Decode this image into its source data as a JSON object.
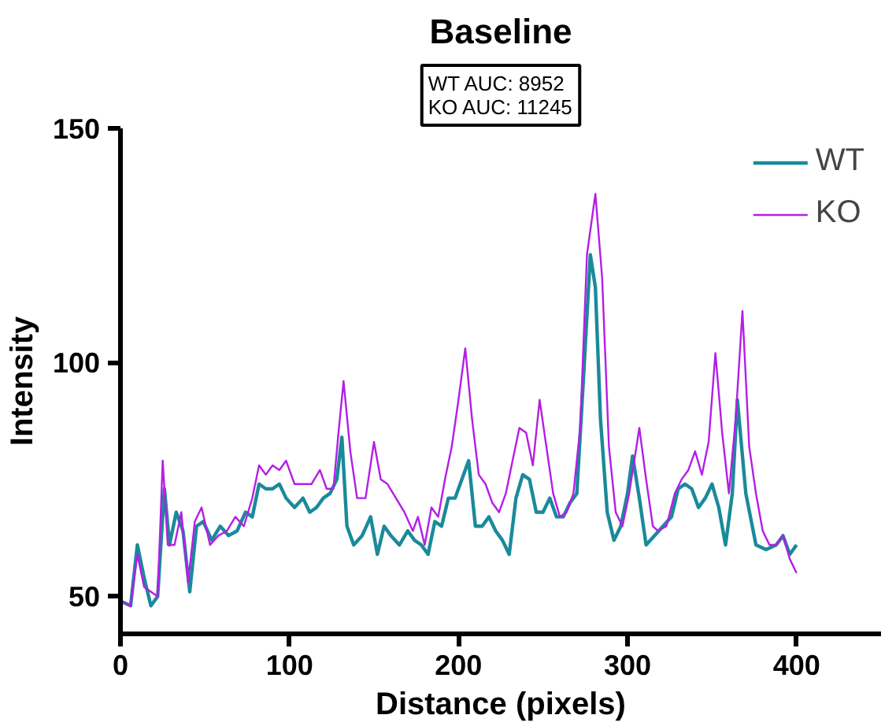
{
  "chart_data": {
    "type": "line",
    "title": "Baseline",
    "xlabel": "Distance (pixels)",
    "ylabel": "Intensity",
    "annotations": [
      "WT AUC: 8952",
      "KO AUC: 11245"
    ],
    "xlim": [
      0,
      450
    ],
    "ylim": [
      42,
      150
    ],
    "xticks": [
      0,
      100,
      200,
      300,
      400
    ],
    "yticks": [
      50,
      100,
      150
    ],
    "grid": false,
    "legend": "top right",
    "line_style": "solid",
    "marker": "none",
    "series": [
      {
        "name": "WT",
        "color": "#1a8a9a",
        "x": [
          0,
          6,
          10,
          14,
          18,
          22,
          26,
          29,
          33,
          37,
          41,
          45,
          49,
          54,
          59,
          64,
          69,
          74,
          78,
          82,
          86,
          90,
          94,
          98,
          103,
          108,
          112,
          116,
          120,
          124,
          128,
          131,
          134,
          138,
          143,
          148,
          152,
          156,
          160,
          165,
          170,
          174,
          178,
          182,
          186,
          190,
          194,
          198,
          202,
          206,
          210,
          214,
          218,
          222,
          226,
          230,
          234,
          238,
          242,
          246,
          250,
          254,
          258,
          262,
          266,
          270,
          274,
          278,
          281,
          284,
          288,
          292,
          296,
          300,
          303,
          307,
          311,
          316,
          321,
          326,
          330,
          334,
          338,
          342,
          346,
          350,
          354,
          358,
          362,
          365,
          370,
          376,
          382,
          388,
          392,
          396,
          400
        ],
        "values": [
          49,
          48,
          61,
          54,
          48,
          50,
          73,
          61,
          68,
          64,
          51,
          65,
          66,
          62,
          65,
          63,
          64,
          68,
          67,
          74,
          73,
          73,
          74,
          71,
          69,
          71,
          68,
          69,
          71,
          72,
          75,
          84,
          65,
          61,
          63,
          67,
          59,
          65,
          63,
          61,
          64,
          62,
          61,
          59,
          66,
          65,
          71,
          71,
          75,
          79,
          65,
          65,
          67,
          64,
          62,
          59,
          71,
          76,
          75,
          68,
          68,
          71,
          67,
          67,
          70,
          72,
          97,
          123,
          116,
          88,
          68,
          62,
          65,
          72,
          80,
          71,
          61,
          63,
          65,
          67,
          73,
          74,
          73,
          69,
          71,
          74,
          69,
          61,
          72,
          92,
          72,
          61,
          60,
          61,
          63,
          59,
          61
        ]
      },
      {
        "name": "KO",
        "color": "#b41ee6",
        "x": [
          0,
          6,
          10,
          14,
          18,
          22,
          25,
          28,
          32,
          36,
          40,
          44,
          48,
          53,
          58,
          63,
          68,
          73,
          78,
          82,
          86,
          90,
          94,
          98,
          103,
          108,
          113,
          118,
          122,
          126,
          129,
          132,
          136,
          140,
          145,
          150,
          154,
          158,
          163,
          168,
          173,
          176,
          180,
          184,
          188,
          192,
          196,
          200,
          204,
          208,
          212,
          216,
          220,
          224,
          228,
          232,
          236,
          240,
          244,
          248,
          252,
          256,
          260,
          264,
          268,
          272,
          276,
          281,
          285,
          289,
          293,
          297,
          301,
          307,
          311,
          315,
          318,
          323,
          328,
          332,
          336,
          340,
          344,
          348,
          352,
          356,
          360,
          364,
          368,
          372,
          376,
          380,
          384,
          388,
          392,
          396,
          400
        ],
        "values": [
          49,
          48,
          59,
          52,
          51,
          50,
          79,
          61,
          61,
          68,
          53,
          66,
          69,
          61,
          63,
          64,
          67,
          65,
          71,
          78,
          76,
          78,
          77,
          79,
          74,
          74,
          74,
          77,
          73,
          73,
          85,
          96,
          81,
          71,
          71,
          83,
          75,
          74,
          71,
          68,
          64,
          67,
          61,
          69,
          67,
          75,
          82,
          92,
          103,
          88,
          76,
          74,
          70,
          68,
          72,
          79,
          86,
          85,
          78,
          92,
          82,
          72,
          67,
          68,
          72,
          86,
          123,
          136,
          118,
          82,
          68,
          65,
          72,
          86,
          75,
          65,
          64,
          65,
          72,
          75,
          77,
          81,
          76,
          83,
          102,
          85,
          72,
          88,
          111,
          82,
          72,
          64,
          61,
          61,
          63,
          58,
          55
        ]
      }
    ]
  }
}
